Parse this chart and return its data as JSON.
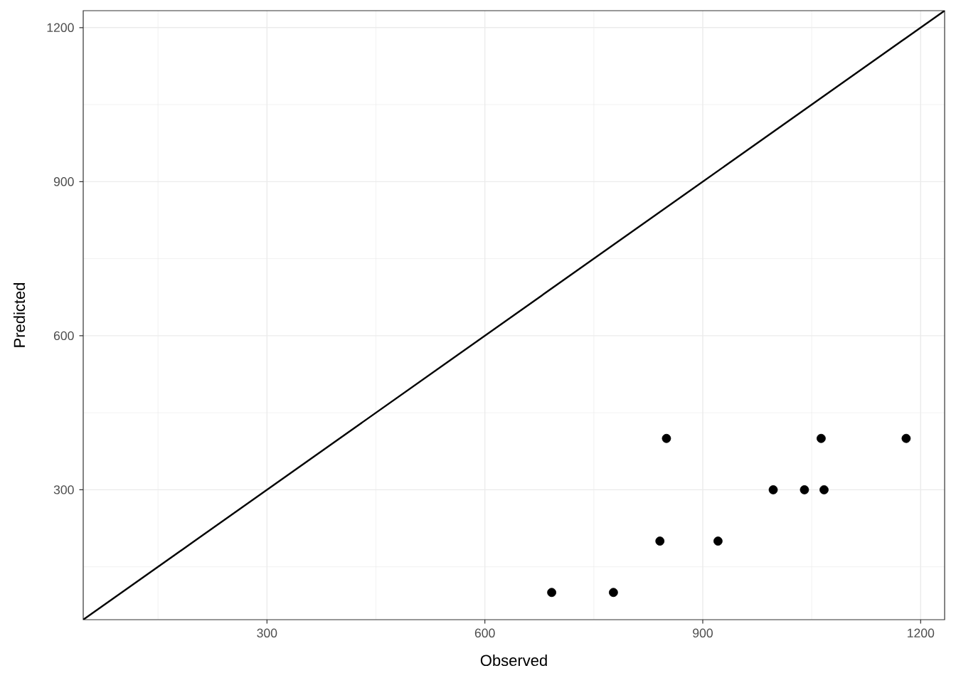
{
  "chart_data": {
    "type": "scatter",
    "xlabel": "Observed",
    "ylabel": "Predicted",
    "xlim": [
      47,
      1233
    ],
    "ylim": [
      47,
      1233
    ],
    "xticks": [
      300,
      600,
      900,
      1200
    ],
    "yticks": [
      300,
      600,
      900,
      1200
    ],
    "grid": true,
    "series": [
      {
        "color": "#000000",
        "marker": "circle",
        "x": [
          692,
          777,
          841,
          921,
          997,
          1040,
          1067,
          850,
          1063,
          1180
        ],
        "values": [
          100,
          100,
          200,
          200,
          300,
          300,
          300,
          400,
          400,
          400
        ]
      },
      {
        "type": "line",
        "color": "#000000",
        "marker": "none",
        "line_style": "solid",
        "x": [
          47,
          1233
        ],
        "values": [
          47,
          1233
        ]
      }
    ]
  }
}
